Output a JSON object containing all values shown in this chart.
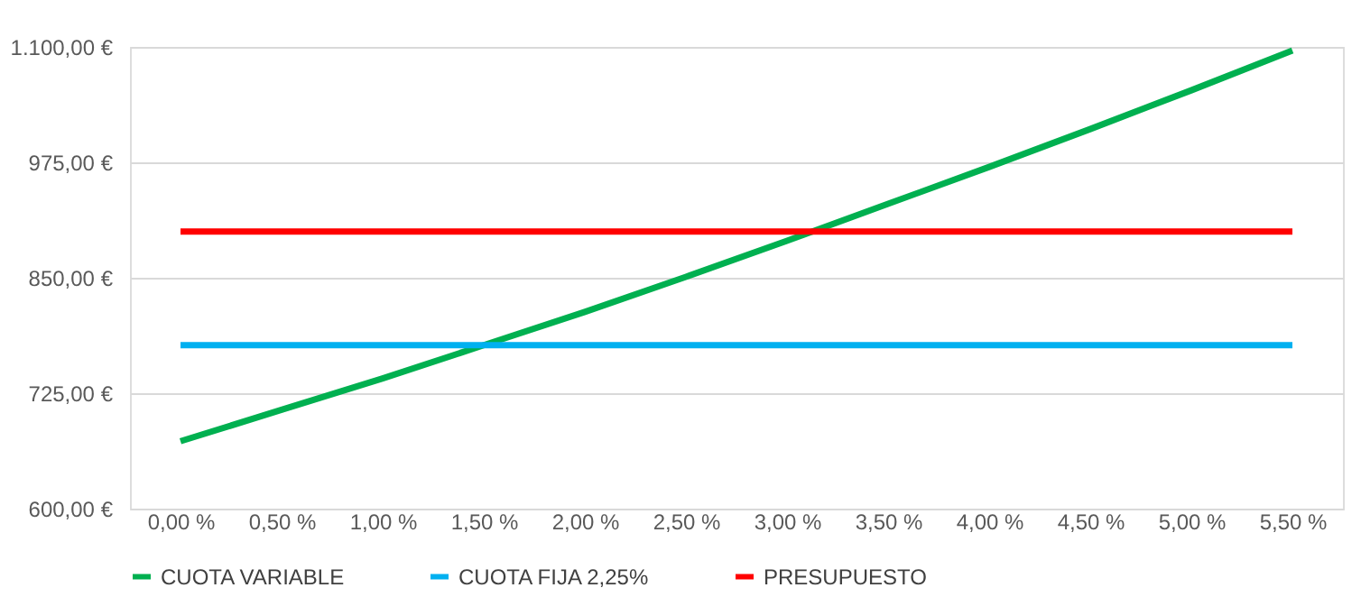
{
  "chart_data": {
    "type": "line",
    "categories": [
      "0,00 %",
      "0,50 %",
      "1,00 %",
      "1,50 %",
      "2,00 %",
      "2,50 %",
      "3,00 %",
      "3,50 %",
      "4,00 %",
      "4,50 %",
      "5,00 %",
      "5,50 %"
    ],
    "series": [
      {
        "name": "CUOTA VARIABLE",
        "color": "#00b050",
        "values": [
          673,
          707,
          741,
          777,
          813,
          851,
          890,
          930,
          970,
          1011,
          1053,
          1096
        ]
      },
      {
        "name": "CUOTA FIJA 2,25%",
        "color": "#00b0f0",
        "values": [
          777,
          777,
          777,
          777,
          777,
          777,
          777,
          777,
          777,
          777,
          777,
          777
        ]
      },
      {
        "name": "PRESUPUESTO",
        "color": "#ff0000",
        "values": [
          900,
          900,
          900,
          900,
          900,
          900,
          900,
          900,
          900,
          900,
          900,
          900
        ]
      }
    ],
    "ylim": [
      600,
      1100
    ],
    "yticks": [
      {
        "value": 600,
        "label": "600,00 €"
      },
      {
        "value": 725,
        "label": "725,00 €"
      },
      {
        "value": 850,
        "label": "850,00 €"
      },
      {
        "value": 975,
        "label": "975,00 €"
      },
      {
        "value": 1100,
        "label": "1.100,00 €"
      }
    ],
    "grid": "y",
    "legend": "bottom",
    "marker": "none",
    "line_style": "solid"
  }
}
